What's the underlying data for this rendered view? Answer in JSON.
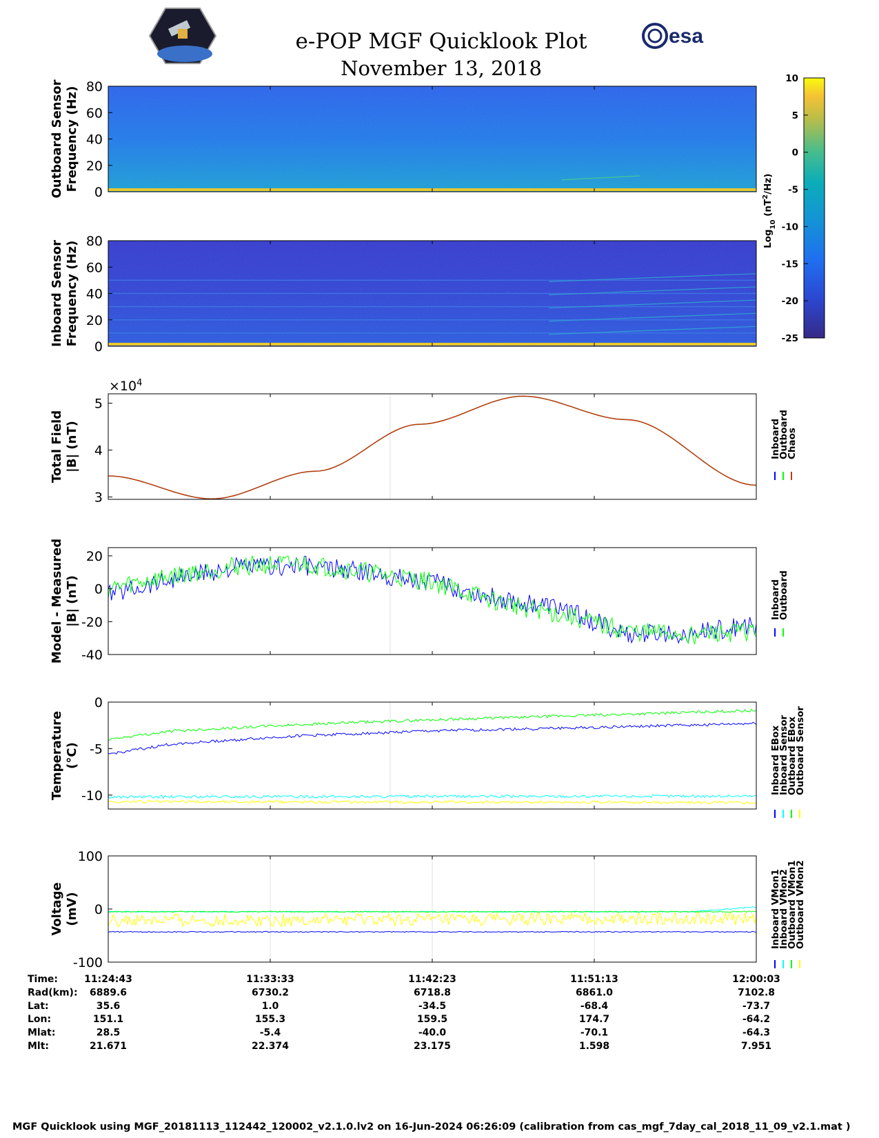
{
  "title": "e-POP MGF Quicklook Plot",
  "date": "November 13, 2018",
  "logos": {
    "left": "cassiope-logo",
    "right_text": "esa"
  },
  "footer": "MGF Quicklook using MGF_20181113_112442_120002_v2.1.0.lv2 on 16-Jun-2024 06:26:09 (calibration from cas_mgf_7day_cal_2018_11_09_v2.1.mat )",
  "colorbar": {
    "label": "Log10 (nT2/Hz)",
    "label_main": "Log",
    "label_sub": "10",
    "label_rest": "(nT",
    "label_sup": "2",
    "label_end": "/Hz)",
    "ticks": [
      "10",
      "5",
      "0",
      "-5",
      "-10",
      "-15",
      "-20",
      "-25"
    ]
  },
  "time_table": {
    "row_labels": [
      "Time:",
      "Rad(km):",
      "Lat:",
      "Lon:",
      "Mlat:",
      "Mlt:"
    ],
    "columns": [
      [
        "11:24:43",
        "6889.6",
        "35.6",
        "151.1",
        "28.5",
        "21.671"
      ],
      [
        "11:33:33",
        "6730.2",
        "1.0",
        "155.3",
        "-5.4",
        "22.374"
      ],
      [
        "11:42:23",
        "6718.8",
        "-34.5",
        "159.5",
        "-40.0",
        "23.175"
      ],
      [
        "11:51:13",
        "6861.0",
        "-68.4",
        "174.7",
        "-70.1",
        "1.598"
      ],
      [
        "12:00:03",
        "7102.8",
        "-73.7",
        "-64.2",
        "-64.3",
        "7.951"
      ]
    ]
  },
  "colors": {
    "blue": "#0000ff",
    "green": "#00ff00",
    "red": "#ff0000",
    "cyan": "#00ffff",
    "yellow": "#ffff00",
    "chaos_line": "#b04010"
  },
  "chart_data": [
    {
      "type": "heatmap",
      "id": "outboard",
      "ylabel": [
        "Outboard Sensor",
        "Frequency (Hz)"
      ],
      "ylim": [
        0,
        80
      ],
      "yticks": [
        "80",
        "60",
        "40",
        "20",
        "0"
      ],
      "color_range": [
        -25,
        10
      ]
    },
    {
      "type": "heatmap",
      "id": "inboard",
      "ylabel": [
        "Inboard Sensor",
        "Frequency (Hz)"
      ],
      "ylim": [
        0,
        80
      ],
      "yticks": [
        "80",
        "60",
        "40",
        "20",
        "0"
      ],
      "color_range": [
        -25,
        10
      ]
    },
    {
      "type": "line",
      "id": "total",
      "ylabel": [
        "Total Field",
        "|B| (nT)"
      ],
      "exponent": "10",
      "exponent_sup": "4",
      "ylim": [
        2.95,
        5.2
      ],
      "yticks": [
        "5",
        "4",
        "3"
      ],
      "legend": [
        "Inboard",
        "Outboard",
        "Chaos"
      ],
      "series": [
        {
          "name": "Chaos",
          "x": [
            0,
            0.16,
            0.32,
            0.48,
            0.64,
            0.8,
            1.0
          ],
          "values": [
            3.45,
            2.96,
            3.55,
            4.55,
            5.15,
            4.65,
            3.25
          ]
        }
      ]
    },
    {
      "type": "line",
      "id": "residual",
      "ylabel": [
        "Model - Measured",
        "|B| (nT)"
      ],
      "ylim": [
        -40,
        25
      ],
      "yticks": [
        "20",
        "0",
        "-20",
        "-40"
      ],
      "legend": [
        "Inboard",
        "Outboard"
      ],
      "series": [
        {
          "name": "Inboard",
          "x": [
            0,
            0.1,
            0.2,
            0.3,
            0.4,
            0.5,
            0.6,
            0.7,
            0.8,
            0.9,
            1.0
          ],
          "values": [
            -3,
            6,
            13,
            14,
            10,
            4,
            -6,
            -12,
            -28,
            -27,
            -22
          ]
        },
        {
          "name": "Outboard",
          "x": [
            0,
            0.1,
            0.2,
            0.3,
            0.4,
            0.5,
            0.6,
            0.7,
            0.8,
            0.9,
            1.0
          ],
          "values": [
            0,
            8,
            14,
            15,
            10,
            4,
            -8,
            -16,
            -26,
            -28,
            -26
          ]
        }
      ]
    },
    {
      "type": "line",
      "id": "temperature",
      "ylabel": [
        "Temperature",
        "(°C)"
      ],
      "ylim": [
        -11.5,
        0
      ],
      "yticks": [
        "0",
        "-5",
        "-10"
      ],
      "legend": [
        "Inboard EBox",
        "Inboard Sensor",
        "Outboard EBox",
        "Outboard Sensor"
      ],
      "series": [
        {
          "name": "Inboard EBox",
          "x": [
            0,
            0.1,
            0.3,
            0.5,
            0.7,
            1.0
          ],
          "values": [
            -5.6,
            -4.5,
            -3.6,
            -3.1,
            -2.8,
            -2.3
          ]
        },
        {
          "name": "Outboard EBox",
          "x": [
            0,
            0.1,
            0.3,
            0.5,
            0.7,
            1.0
          ],
          "values": [
            -4.0,
            -3.1,
            -2.4,
            -1.9,
            -1.5,
            -0.9
          ]
        },
        {
          "name": "Inboard Sensor",
          "x": [
            0,
            1.0
          ],
          "values": [
            -10.2,
            -10.1
          ]
        },
        {
          "name": "Outboard Sensor",
          "x": [
            0,
            1.0
          ],
          "values": [
            -10.7,
            -10.8
          ]
        }
      ]
    },
    {
      "type": "line",
      "id": "voltage",
      "ylabel": [
        "Voltage",
        "(mV)"
      ],
      "ylim": [
        -100,
        100
      ],
      "yticks": [
        "100",
        "0",
        "-100"
      ],
      "legend": [
        "Inboard VMon1",
        "Inboard VMon2",
        "Outboard VMon1",
        "Outboard VMon2"
      ],
      "series": [
        {
          "name": "Inboard VMon1",
          "x": [
            0,
            1.0
          ],
          "values": [
            -43,
            -43
          ]
        },
        {
          "name": "Inboard VMon2",
          "x": [
            0,
            0.9,
            1.0
          ],
          "values": [
            -5,
            -5,
            4
          ]
        },
        {
          "name": "Outboard VMon1",
          "x": [
            0,
            1.0
          ],
          "values": [
            -5,
            -5
          ]
        },
        {
          "name": "Outboard VMon2",
          "x": [
            0,
            1.0
          ],
          "values": [
            -22,
            -18
          ]
        }
      ]
    }
  ]
}
